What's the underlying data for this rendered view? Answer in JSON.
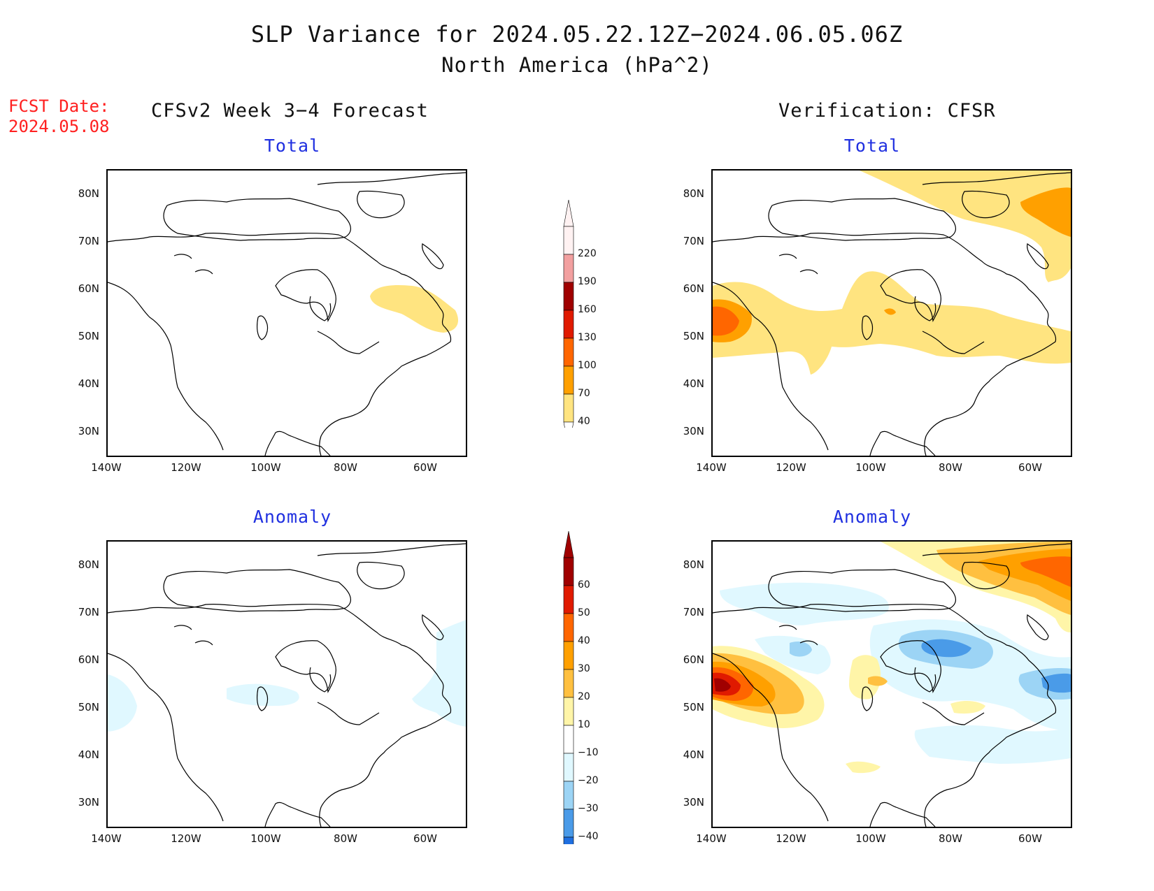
{
  "title": "SLP Variance for 2024.05.22.12Z−2024.06.05.06Z",
  "subtitle": "North America (hPa^2)",
  "fcst_date": {
    "label": "FCST Date:",
    "value": "2024.05.08"
  },
  "columns": {
    "left": "CFSv2 Week 3−4 Forecast",
    "right": "Verification: CFSR"
  },
  "panel_titles": {
    "total": "Total",
    "anomaly": "Anomaly"
  },
  "map": {
    "lat_ticks": [
      "80N",
      "70N",
      "60N",
      "50N",
      "40N",
      "30N"
    ],
    "lon_ticks": [
      "140W",
      "120W",
      "100W",
      "80W",
      "60W"
    ],
    "lat_range": [
      25,
      85
    ],
    "lon_range": [
      -140,
      -50
    ]
  },
  "colorbars": {
    "total": {
      "labels": [
        "220",
        "190",
        "160",
        "130",
        "100",
        "70",
        "40"
      ],
      "colors": [
        "#fff2f2",
        "#f2a0a0",
        "#a00000",
        "#e01a00",
        "#ff6600",
        "#ffa000",
        "#ffe480"
      ]
    },
    "anomaly": {
      "labels": [
        "60",
        "50",
        "40",
        "30",
        "20",
        "10",
        "−10",
        "−20",
        "−30",
        "−40"
      ],
      "colors": [
        "#a00000",
        "#e01a00",
        "#ff6600",
        "#ffa000",
        "#ffc040",
        "#fff5a8",
        "#ffffff",
        "#e0f8ff",
        "#9cd4f5",
        "#4a9be8",
        "#1f6fe0"
      ]
    }
  },
  "colors": {
    "title_blue": "#2030e0",
    "fcst_red": "#ff2020"
  }
}
